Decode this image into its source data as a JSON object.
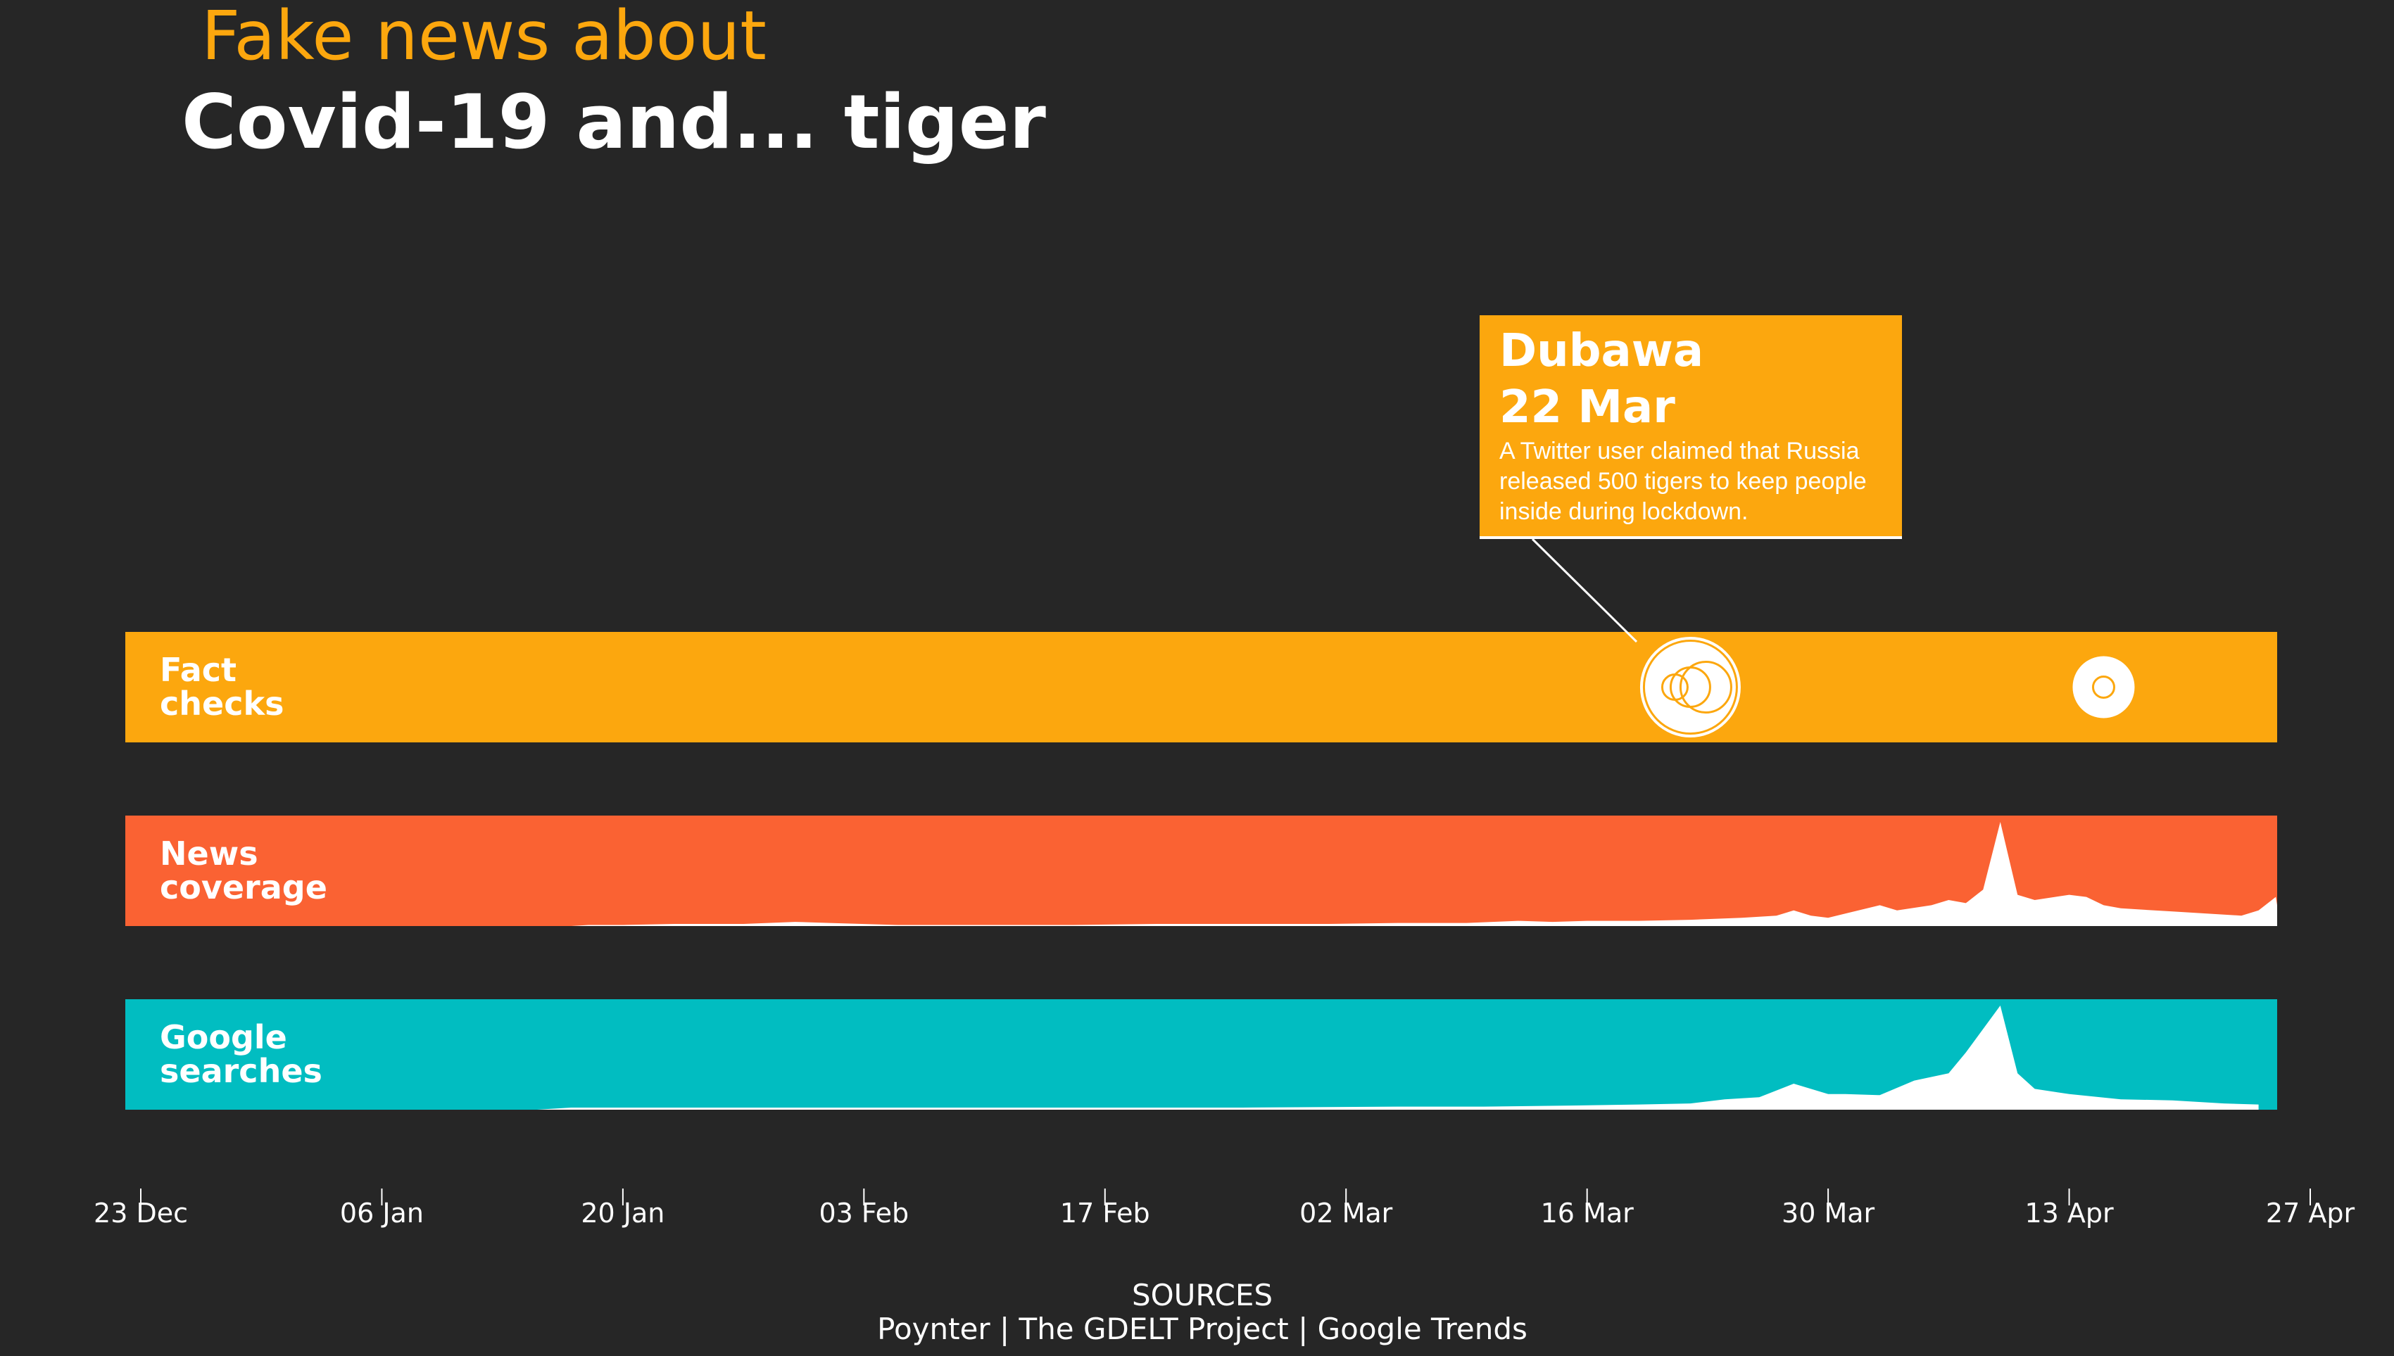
{
  "colors": {
    "background": "#262626",
    "fact_checks": "#FCA70E",
    "news_coverage": "#FA6233",
    "google_searches": "#01BDC1",
    "title_accent": "#FCA70E",
    "text": "#FFFFFF"
  },
  "title": {
    "subtitle": "Fake news about",
    "main": "Covid-19 and... tiger"
  },
  "sources": {
    "heading": "SOURCES",
    "list": "Poynter | The GDELT Project | Google Trends"
  },
  "annotation": {
    "source": "Dubawa",
    "date": "22 Mar",
    "text_lines": [
      "A Twitter user claimed that Russia",
      "released 500 tigers to keep people",
      "inside during lockdown."
    ]
  },
  "chart_data": {
    "type": "area",
    "x_axis": {
      "start": "2019-12-23",
      "end": "2020-04-27",
      "ticks": [
        "23 Dec",
        "06 Jan",
        "20 Jan",
        "03 Feb",
        "17 Feb",
        "02 Mar",
        "16 Mar",
        "30 Mar",
        "13 Apr",
        "27 Apr"
      ],
      "tick_dates": [
        "2019-12-23",
        "2020-01-06",
        "2020-01-20",
        "2020-02-03",
        "2020-02-17",
        "2020-03-02",
        "2020-03-16",
        "2020-03-30",
        "2020-04-13",
        "2020-04-27"
      ]
    },
    "lanes": [
      {
        "label_lines": [
          "Fact",
          "checks"
        ],
        "kind": "events",
        "events": [
          {
            "date": "2020-03-22",
            "count": 3
          },
          {
            "date": "2020-04-15",
            "count": 1
          }
        ]
      },
      {
        "label_lines": [
          "News",
          "coverage"
        ],
        "kind": "area",
        "points": [
          [
            "2020-01-17",
            0
          ],
          [
            "2020-01-18",
            0.01
          ],
          [
            "2020-01-20",
            0.01
          ],
          [
            "2020-01-23",
            0.02
          ],
          [
            "2020-01-27",
            0.02
          ],
          [
            "2020-01-30",
            0.04
          ],
          [
            "2020-02-01",
            0.03
          ],
          [
            "2020-02-05",
            0.01
          ],
          [
            "2020-02-10",
            0.01
          ],
          [
            "2020-02-15",
            0.01
          ],
          [
            "2020-02-20",
            0.02
          ],
          [
            "2020-02-25",
            0.02
          ],
          [
            "2020-03-01",
            0.02
          ],
          [
            "2020-03-05",
            0.03
          ],
          [
            "2020-03-09",
            0.03
          ],
          [
            "2020-03-12",
            0.05
          ],
          [
            "2020-03-14",
            0.04
          ],
          [
            "2020-03-16",
            0.05
          ],
          [
            "2020-03-19",
            0.05
          ],
          [
            "2020-03-22",
            0.06
          ],
          [
            "2020-03-25",
            0.08
          ],
          [
            "2020-03-27",
            0.1
          ],
          [
            "2020-03-28",
            0.15
          ],
          [
            "2020-03-29",
            0.1
          ],
          [
            "2020-03-30",
            0.08
          ],
          [
            "2020-03-31",
            0.12
          ],
          [
            "2020-04-02",
            0.2
          ],
          [
            "2020-04-03",
            0.15
          ],
          [
            "2020-04-05",
            0.2
          ],
          [
            "2020-04-06",
            0.25
          ],
          [
            "2020-04-07",
            0.22
          ],
          [
            "2020-04-08",
            0.35
          ],
          [
            "2020-04-09",
            1.0
          ],
          [
            "2020-04-10",
            0.3
          ],
          [
            "2020-04-11",
            0.25
          ],
          [
            "2020-04-13",
            0.3
          ],
          [
            "2020-04-14",
            0.28
          ],
          [
            "2020-04-15",
            0.2
          ],
          [
            "2020-04-16",
            0.17
          ],
          [
            "2020-04-19",
            0.14
          ],
          [
            "2020-04-21",
            0.12
          ],
          [
            "2020-04-23",
            0.1
          ],
          [
            "2020-04-24",
            0.15
          ],
          [
            "2020-04-25",
            0.28
          ],
          [
            "2020-04-26",
            0.2
          ],
          [
            "2020-04-27",
            0.12
          ]
        ]
      },
      {
        "label_lines": [
          "Google",
          "searches"
        ],
        "kind": "area",
        "points": [
          [
            "2020-01-15",
            0
          ],
          [
            "2020-01-17",
            0.02
          ],
          [
            "2020-01-25",
            0.02
          ],
          [
            "2020-02-05",
            0.02
          ],
          [
            "2020-02-15",
            0.02
          ],
          [
            "2020-02-25",
            0.02
          ],
          [
            "2020-03-05",
            0.03
          ],
          [
            "2020-03-10",
            0.03
          ],
          [
            "2020-03-15",
            0.04
          ],
          [
            "2020-03-19",
            0.05
          ],
          [
            "2020-03-22",
            0.06
          ],
          [
            "2020-03-24",
            0.1
          ],
          [
            "2020-03-26",
            0.12
          ],
          [
            "2020-03-28",
            0.25
          ],
          [
            "2020-03-30",
            0.15
          ],
          [
            "2020-03-31",
            0.15
          ],
          [
            "2020-04-02",
            0.14
          ],
          [
            "2020-04-04",
            0.28
          ],
          [
            "2020-04-06",
            0.35
          ],
          [
            "2020-04-07",
            0.55
          ],
          [
            "2020-04-09",
            1.0
          ],
          [
            "2020-04-10",
            0.35
          ],
          [
            "2020-04-11",
            0.2
          ],
          [
            "2020-04-13",
            0.15
          ],
          [
            "2020-04-16",
            0.1
          ],
          [
            "2020-04-19",
            0.09
          ],
          [
            "2020-04-22",
            0.06
          ],
          [
            "2020-04-24",
            0.05
          ],
          [
            "2020-04-24",
            0
          ]
        ]
      }
    ]
  }
}
